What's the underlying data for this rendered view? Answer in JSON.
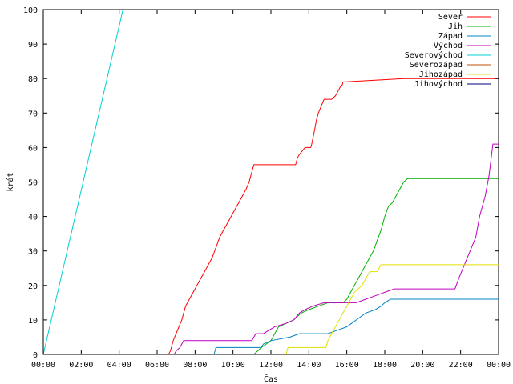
{
  "chart_data": {
    "type": "line",
    "xlabel": "Čas",
    "ylabel": "krát",
    "xlim": [
      0,
      24
    ],
    "ylim": [
      0,
      100
    ],
    "grid": false,
    "legend_position": "top-right",
    "x_tick_labels": [
      "00:00",
      "02:00",
      "04:00",
      "06:00",
      "08:00",
      "10:00",
      "12:00",
      "14:00",
      "16:00",
      "18:00",
      "20:00",
      "22:00",
      "00:00"
    ],
    "y_tick_labels": [
      "0",
      "10",
      "20",
      "30",
      "40",
      "50",
      "60",
      "70",
      "80",
      "90",
      "100"
    ],
    "x_unit_note_hours": [
      0,
      2,
      4,
      6,
      8,
      10,
      12,
      14,
      16,
      18,
      20,
      22,
      24
    ],
    "y_ticks": [
      0,
      10,
      20,
      30,
      40,
      50,
      60,
      70,
      80,
      90,
      100
    ],
    "series": [
      {
        "name": "Sever",
        "color": "#ff0000",
        "x": [
          0,
          6.6,
          6.7,
          6.75,
          6.85,
          7.0,
          7.15,
          7.3,
          7.5,
          7.7,
          7.9,
          8.1,
          8.3,
          8.5,
          8.7,
          8.9,
          9.1,
          9.3,
          9.5,
          9.7,
          9.9,
          10.1,
          10.3,
          10.5,
          10.7,
          10.85,
          10.95,
          11.1,
          11.3,
          11.5,
          11.6,
          11.7,
          13.3,
          13.4,
          13.5,
          13.65,
          13.8,
          14.1,
          14.15,
          14.3,
          14.4,
          14.5,
          14.65,
          14.8,
          14.9,
          15.0,
          15.1,
          15.2,
          15.4,
          15.6,
          15.7,
          15.75,
          15.8,
          19.0,
          24
        ],
        "y": [
          0,
          0,
          1,
          2,
          4,
          6,
          8,
          10,
          14,
          16,
          18,
          20,
          22,
          24,
          26,
          28,
          31,
          34,
          36,
          38,
          40,
          42,
          44,
          46,
          48,
          50,
          52,
          55,
          55,
          55,
          55,
          55,
          55,
          57,
          58,
          59,
          60,
          60,
          61,
          65,
          68,
          70,
          72,
          74,
          74,
          74,
          74,
          74,
          75,
          77,
          78,
          78,
          79,
          80,
          80
        ]
      },
      {
        "name": "Jih",
        "color": "#00b000",
        "x": [
          0,
          11.1,
          11.5,
          12.0,
          12.2,
          12.4,
          12.8,
          13.2,
          13.6,
          14.0,
          14.5,
          15.0,
          15.5,
          15.8,
          16.0,
          16.2,
          16.4,
          16.6,
          16.8,
          17.0,
          17.2,
          17.4,
          17.6,
          17.8,
          18.0,
          18.2,
          18.4,
          18.6,
          18.8,
          19.0,
          19.2,
          19.5,
          24
        ],
        "y": [
          0,
          0,
          2,
          4,
          6,
          8,
          9,
          10,
          12,
          13,
          14,
          15,
          15,
          15,
          16,
          18,
          20,
          22,
          24,
          26,
          28,
          30,
          33,
          36,
          40,
          43,
          44,
          46,
          48,
          50,
          51,
          51,
          51
        ]
      },
      {
        "name": "Západ",
        "color": "#0080c0",
        "x": [
          0,
          9.0,
          9.1,
          11.5,
          11.6,
          12.0,
          13.0,
          13.5,
          14.0,
          15.0,
          15.5,
          16.0,
          16.5,
          17.0,
          17.5,
          17.8,
          18.0,
          18.3,
          19.0,
          20.0,
          22.0,
          24
        ],
        "y": [
          0,
          0,
          2,
          2,
          3,
          4,
          5,
          6,
          6,
          6,
          7,
          8,
          10,
          12,
          13,
          14,
          15,
          16,
          16,
          16,
          16,
          16
        ]
      },
      {
        "name": "Východ",
        "color": "#c000c0",
        "x": [
          0,
          6.9,
          7.0,
          7.2,
          7.4,
          11.0,
          11.2,
          11.6,
          12.2,
          12.8,
          13.2,
          13.5,
          13.8,
          14.2,
          14.8,
          15.5,
          16.5,
          17.0,
          17.5,
          18.0,
          18.5,
          19.5,
          21.0,
          21.7,
          21.9,
          22.2,
          22.5,
          22.8,
          23.0,
          23.3,
          23.5,
          23.7,
          24
        ],
        "y": [
          0,
          0,
          1,
          2,
          4,
          4,
          6,
          6,
          8,
          9,
          10,
          12,
          13,
          14,
          15,
          15,
          15,
          16,
          17,
          18,
          19,
          19,
          19,
          19,
          22,
          26,
          30,
          34,
          40,
          46,
          52,
          61,
          61
        ]
      },
      {
        "name": "Severovýchod",
        "color": "#00d0d0",
        "x": [
          0,
          4.2
        ],
        "y": [
          0,
          100
        ]
      },
      {
        "name": "Severozápad",
        "color": "#c05000",
        "x": [
          0,
          24
        ],
        "y": [
          0,
          0
        ]
      },
      {
        "name": "Jihozápad",
        "color": "#e0e000",
        "x": [
          0,
          12.8,
          12.9,
          14.0,
          14.9,
          15.0,
          15.2,
          15.4,
          15.6,
          15.8,
          16.0,
          16.2,
          16.4,
          16.6,
          16.8,
          17.0,
          17.2,
          17.4,
          17.6,
          17.8,
          18.0,
          19.0,
          20.0,
          24
        ],
        "y": [
          0,
          0,
          2,
          2,
          2,
          4,
          6,
          8,
          10,
          12,
          14,
          16,
          18,
          19,
          20,
          22,
          24,
          24,
          24,
          26,
          26,
          26,
          26,
          26
        ]
      },
      {
        "name": "Jihovýchod",
        "color": "#000080",
        "x": [
          0,
          24
        ],
        "y": [
          0,
          0
        ]
      }
    ]
  }
}
